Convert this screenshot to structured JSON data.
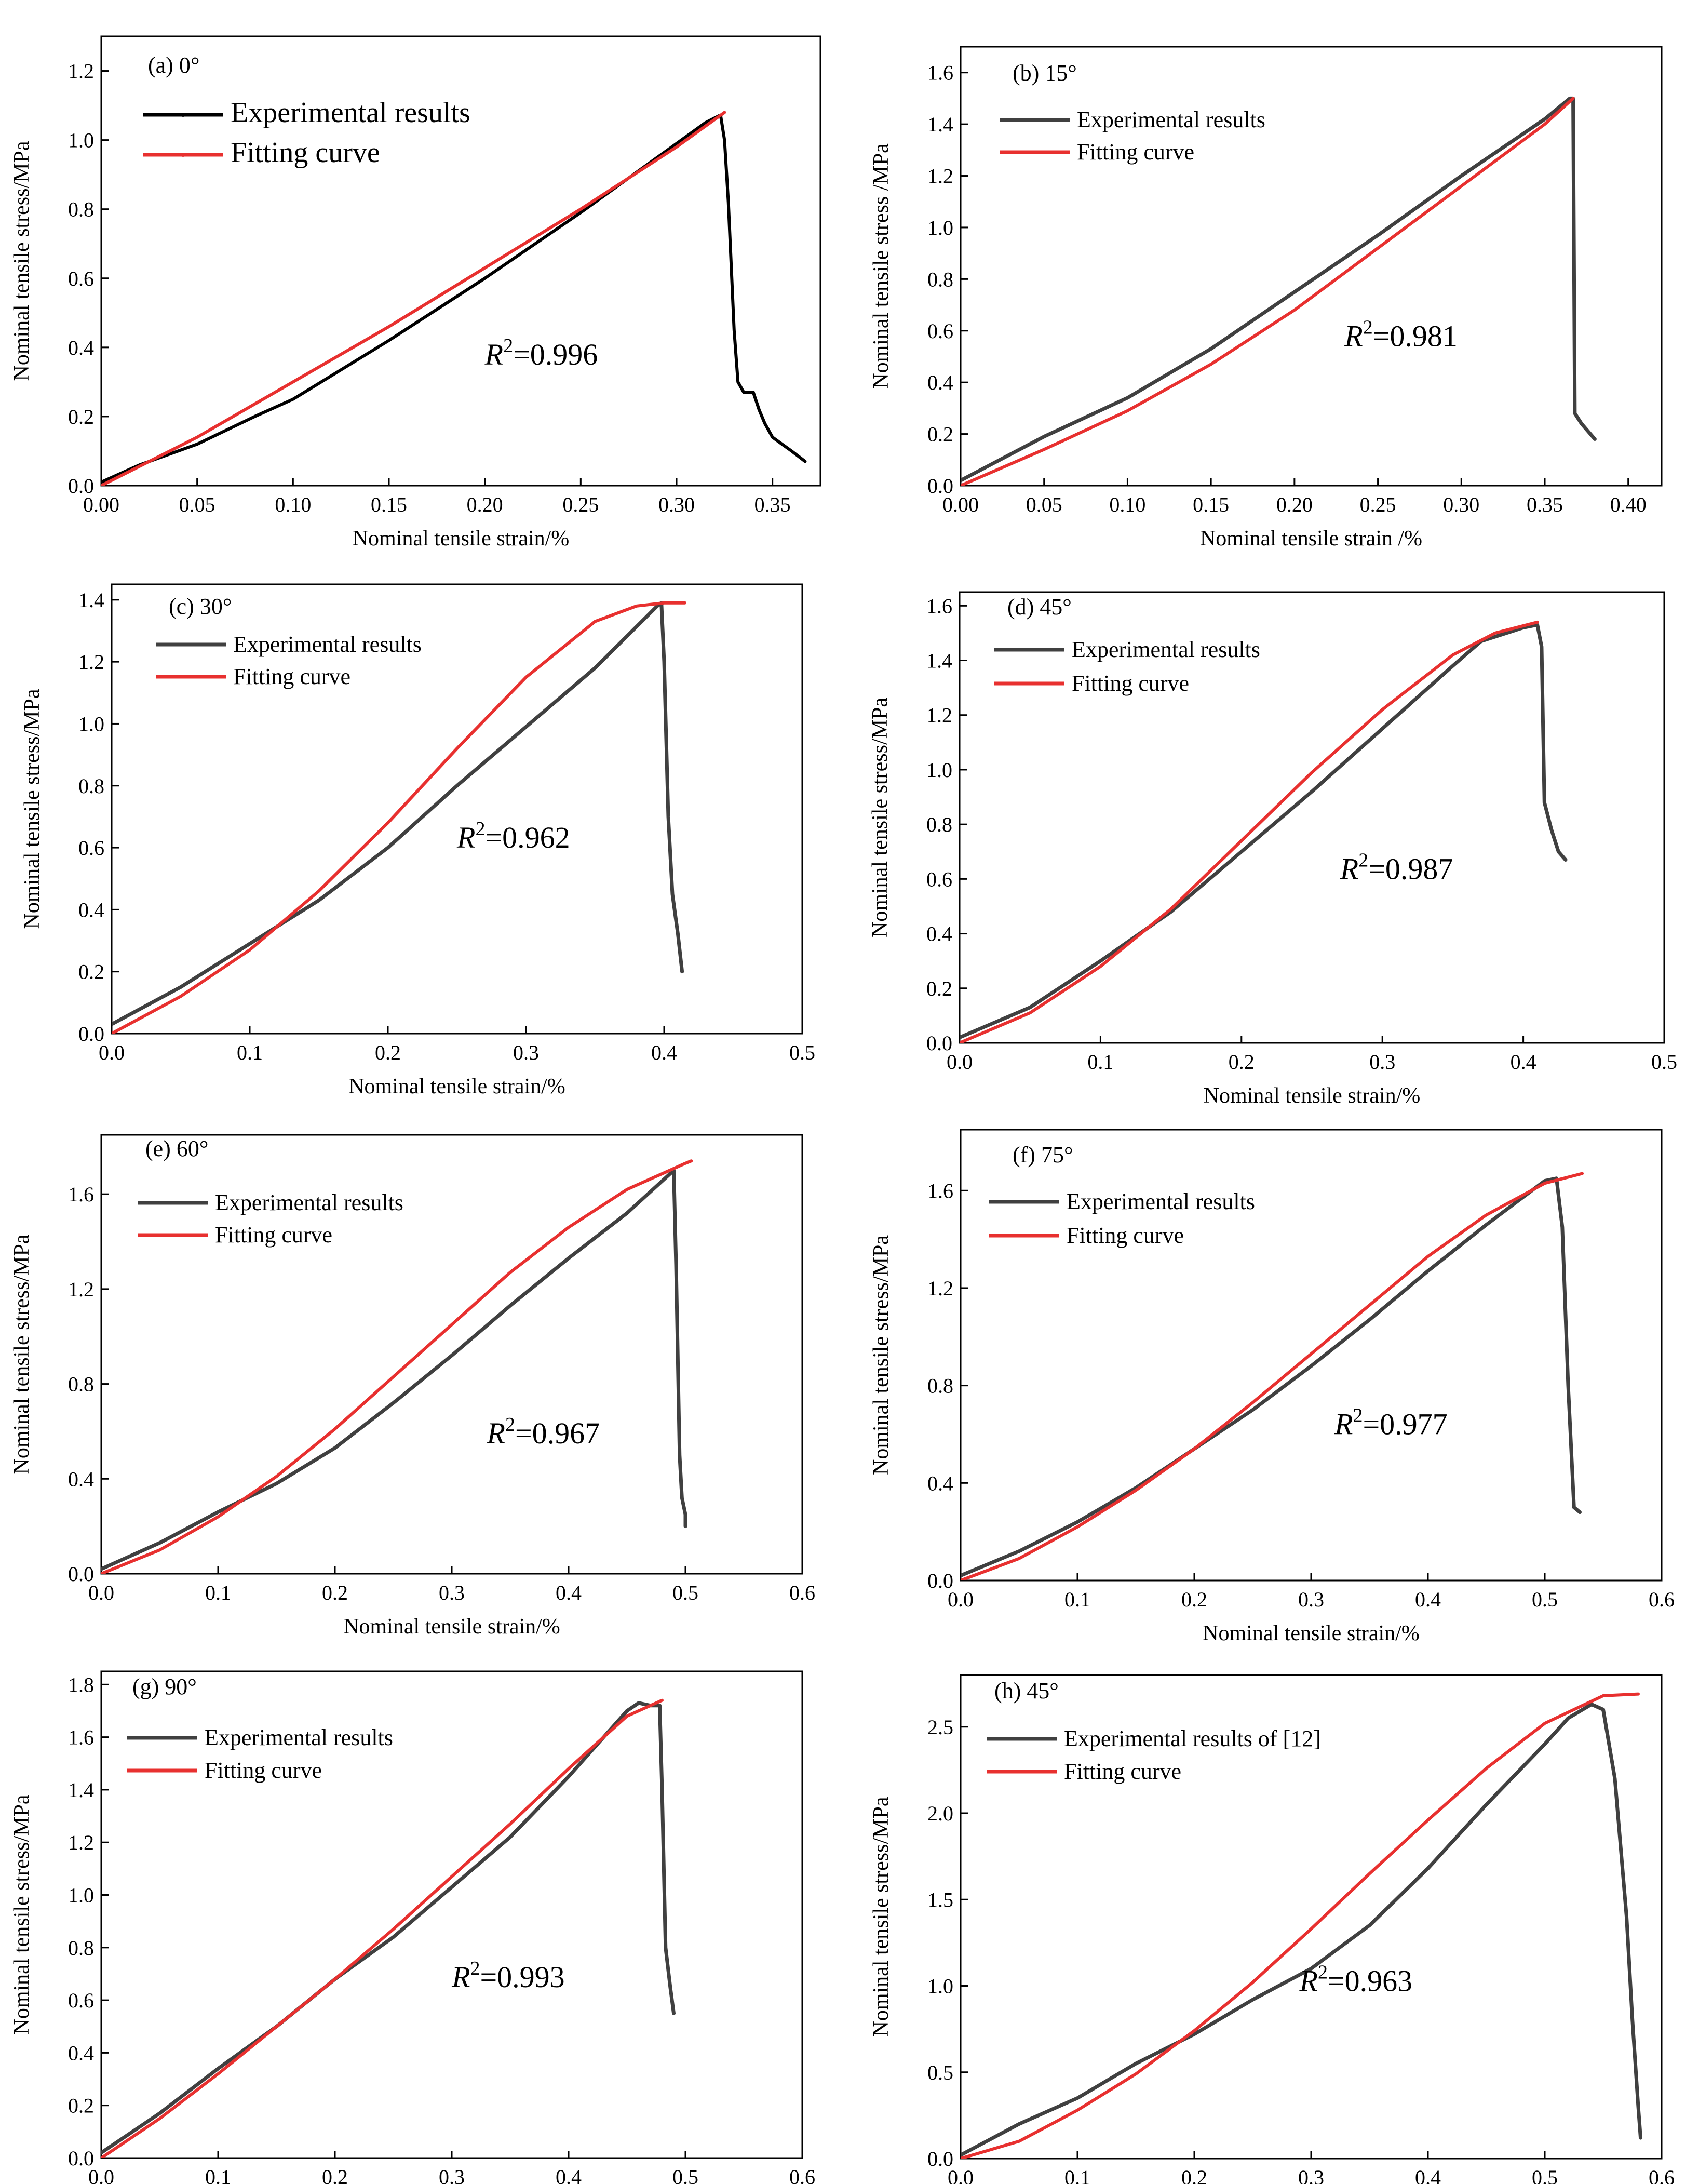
{
  "colors": {
    "experimental": "#404040",
    "experimental_a": "#000000",
    "fitting": "#e8302f",
    "axis": "#000000"
  },
  "chart_data": [
    {
      "type": "line",
      "title": "(a) 0°",
      "xlabel": "Nominal tensile strain/%",
      "ylabel": "Nominal tensile stress/MPa",
      "xlim": [
        0,
        0.375
      ],
      "ylim": [
        0,
        1.3
      ],
      "xticks": [
        0,
        0.05,
        0.1,
        0.15,
        0.2,
        0.25,
        0.3,
        0.35
      ],
      "xtick_labels": [
        "0.00",
        "0.05",
        "0.10",
        "0.15",
        "0.20",
        "0.25",
        "0.30",
        "0.35"
      ],
      "yticks": [
        0,
        0.2,
        0.4,
        0.6,
        0.8,
        1.0,
        1.2
      ],
      "ytick_labels": [
        "0.0",
        "0.2",
        "0.4",
        "0.6",
        "0.8",
        "1.0",
        "1.2"
      ],
      "legend": [
        "Experimental results",
        "Fitting curve"
      ],
      "annotation": {
        "prefix": "R",
        "sup": "2",
        "value": "=0.996",
        "at": [
          0.2,
          0.35
        ]
      },
      "series": [
        {
          "name": "Experimental results",
          "x": [
            0,
            0.02,
            0.05,
            0.08,
            0.1,
            0.15,
            0.2,
            0.25,
            0.3,
            0.315,
            0.322,
            0.323,
            0.325,
            0.327,
            0.33,
            0.332,
            0.335,
            0.34,
            0.343,
            0.346,
            0.35,
            0.355,
            0.36,
            0.367
          ],
          "y": [
            0.01,
            0.06,
            0.12,
            0.2,
            0.25,
            0.42,
            0.6,
            0.79,
            0.99,
            1.05,
            1.07,
            1.07,
            1.0,
            0.82,
            0.45,
            0.3,
            0.27,
            0.27,
            0.22,
            0.18,
            0.14,
            0.12,
            0.1,
            0.07
          ]
        },
        {
          "name": "Fitting curve",
          "x": [
            0,
            0.05,
            0.1,
            0.15,
            0.2,
            0.25,
            0.3,
            0.325
          ],
          "y": [
            0,
            0.14,
            0.3,
            0.46,
            0.63,
            0.8,
            0.98,
            1.08
          ]
        }
      ]
    },
    {
      "type": "line",
      "title": "(b) 15°",
      "xlabel": "Nominal tensile strain /%",
      "ylabel": "Nominal tensile stress /MPa",
      "xlim": [
        0,
        0.42
      ],
      "ylim": [
        0,
        1.7
      ],
      "xticks": [
        0,
        0.05,
        0.1,
        0.15,
        0.2,
        0.25,
        0.3,
        0.35,
        0.4
      ],
      "xtick_labels": [
        "0.00",
        "0.05",
        "0.10",
        "0.15",
        "0.20",
        "0.25",
        "0.30",
        "0.35",
        "0.40"
      ],
      "yticks": [
        0,
        0.2,
        0.4,
        0.6,
        0.8,
        1.0,
        1.2,
        1.4,
        1.6
      ],
      "ytick_labels": [
        "0.0",
        "0.2",
        "0.4",
        "0.6",
        "0.8",
        "1.0",
        "1.2",
        "1.4",
        "1.6"
      ],
      "legend": [
        "Experimental results",
        "Fitting curve"
      ],
      "annotation": {
        "prefix": "R",
        "sup": "2",
        "value": "=0.981",
        "at": [
          0.23,
          0.54
        ]
      },
      "series": [
        {
          "name": "Experimental results",
          "x": [
            0,
            0.05,
            0.1,
            0.15,
            0.2,
            0.25,
            0.3,
            0.35,
            0.365,
            0.367,
            0.368,
            0.372,
            0.38
          ],
          "y": [
            0.02,
            0.19,
            0.34,
            0.53,
            0.75,
            0.97,
            1.2,
            1.42,
            1.5,
            1.5,
            0.28,
            0.24,
            0.18
          ]
        },
        {
          "name": "Fitting curve",
          "x": [
            0,
            0.05,
            0.1,
            0.15,
            0.2,
            0.25,
            0.3,
            0.35,
            0.367
          ],
          "y": [
            0,
            0.14,
            0.29,
            0.47,
            0.68,
            0.92,
            1.16,
            1.4,
            1.5
          ]
        }
      ]
    },
    {
      "type": "line",
      "title": "(c) 30°",
      "xlabel": "Nominal tensile strain/%",
      "ylabel": "Nominal tensile stress/MPa",
      "xlim": [
        0,
        0.5
      ],
      "ylim": [
        0,
        1.45
      ],
      "xticks": [
        0,
        0.1,
        0.2,
        0.3,
        0.4,
        0.5
      ],
      "xtick_labels": [
        "0.0",
        "0.1",
        "0.2",
        "0.3",
        "0.4",
        "0.5"
      ],
      "yticks": [
        0,
        0.2,
        0.4,
        0.6,
        0.8,
        1.0,
        1.2,
        1.4
      ],
      "ytick_labels": [
        "0.0",
        "0.2",
        "0.4",
        "0.6",
        "0.8",
        "1.0",
        "1.2",
        "1.4"
      ],
      "legend": [
        "Experimental results",
        "Fitting curve"
      ],
      "annotation": {
        "prefix": "R",
        "sup": "2",
        "value": "=0.962",
        "at": [
          0.25,
          0.6
        ]
      },
      "series": [
        {
          "name": "Experimental results",
          "x": [
            0,
            0.05,
            0.1,
            0.15,
            0.2,
            0.25,
            0.3,
            0.35,
            0.395,
            0.398,
            0.4,
            0.403,
            0.406,
            0.41,
            0.413
          ],
          "y": [
            0.03,
            0.15,
            0.29,
            0.43,
            0.6,
            0.8,
            0.99,
            1.18,
            1.38,
            1.39,
            1.2,
            0.7,
            0.45,
            0.32,
            0.2
          ]
        },
        {
          "name": "Fitting curve",
          "x": [
            0,
            0.05,
            0.1,
            0.15,
            0.2,
            0.25,
            0.3,
            0.35,
            0.38,
            0.4,
            0.415
          ],
          "y": [
            0,
            0.12,
            0.27,
            0.46,
            0.68,
            0.92,
            1.15,
            1.33,
            1.38,
            1.39,
            1.39
          ]
        }
      ]
    },
    {
      "type": "line",
      "title": "(d) 45°",
      "xlabel": "Nominal tensile strain/%",
      "ylabel": "Nominal tensile stress/MPa",
      "xlim": [
        0,
        0.5
      ],
      "ylim": [
        0,
        1.65
      ],
      "xticks": [
        0,
        0.1,
        0.2,
        0.3,
        0.4,
        0.5
      ],
      "xtick_labels": [
        "0.0",
        "0.1",
        "0.2",
        "0.3",
        "0.4",
        "0.5"
      ],
      "yticks": [
        0,
        0.2,
        0.4,
        0.6,
        0.8,
        1.0,
        1.2,
        1.4,
        1.6
      ],
      "ytick_labels": [
        "0.0",
        "0.2",
        "0.4",
        "0.6",
        "0.8",
        "1.0",
        "1.2",
        "1.4",
        "1.6"
      ],
      "legend": [
        "Experimental results",
        "Fitting curve"
      ],
      "annotation": {
        "prefix": "R",
        "sup": "2",
        "value": "=0.987",
        "at": [
          0.27,
          0.6
        ]
      },
      "series": [
        {
          "name": "Experimental results",
          "x": [
            0,
            0.05,
            0.1,
            0.15,
            0.2,
            0.25,
            0.3,
            0.35,
            0.37,
            0.4,
            0.41,
            0.413,
            0.415,
            0.42,
            0.425,
            0.43
          ],
          "y": [
            0.02,
            0.13,
            0.3,
            0.48,
            0.7,
            0.92,
            1.15,
            1.38,
            1.47,
            1.52,
            1.53,
            1.45,
            0.88,
            0.78,
            0.7,
            0.67
          ]
        },
        {
          "name": "Fitting curve",
          "x": [
            0,
            0.05,
            0.1,
            0.15,
            0.2,
            0.25,
            0.3,
            0.35,
            0.38,
            0.41
          ],
          "y": [
            0,
            0.11,
            0.28,
            0.49,
            0.74,
            0.99,
            1.22,
            1.42,
            1.5,
            1.54
          ]
        }
      ]
    },
    {
      "type": "line",
      "title": "(e) 60°",
      "xlabel": "Nominal tensile strain/%",
      "ylabel": "Nominal tensile stress/MPa",
      "xlim": [
        0,
        0.6
      ],
      "ylim": [
        0,
        1.85
      ],
      "xticks": [
        0,
        0.1,
        0.2,
        0.3,
        0.4,
        0.5,
        0.6
      ],
      "xtick_labels": [
        "0.0",
        "0.1",
        "0.2",
        "0.3",
        "0.4",
        "0.5",
        "0.6"
      ],
      "yticks": [
        0,
        0.4,
        0.8,
        1.2,
        1.6
      ],
      "ytick_labels": [
        "0.0",
        "0.4",
        "0.8",
        "1.2",
        "1.6"
      ],
      "legend": [
        "Experimental results",
        "Fitting curve"
      ],
      "annotation": {
        "prefix": "R",
        "sup": "2",
        "value": "=0.967",
        "at": [
          0.33,
          0.55
        ]
      },
      "series": [
        {
          "name": "Experimental results",
          "x": [
            0,
            0.05,
            0.1,
            0.15,
            0.2,
            0.25,
            0.3,
            0.35,
            0.4,
            0.45,
            0.49,
            0.492,
            0.495,
            0.497,
            0.5,
            0.5
          ],
          "y": [
            0.02,
            0.13,
            0.26,
            0.38,
            0.53,
            0.72,
            0.92,
            1.13,
            1.33,
            1.52,
            1.7,
            1.3,
            0.5,
            0.32,
            0.25,
            0.2
          ]
        },
        {
          "name": "Fitting curve",
          "x": [
            0,
            0.05,
            0.1,
            0.15,
            0.2,
            0.25,
            0.3,
            0.35,
            0.4,
            0.45,
            0.5,
            0.505
          ],
          "y": [
            0,
            0.1,
            0.24,
            0.41,
            0.61,
            0.83,
            1.05,
            1.27,
            1.46,
            1.62,
            1.73,
            1.74
          ]
        }
      ]
    },
    {
      "type": "line",
      "title": "(f) 75°",
      "xlabel": "Nominal tensile strain/%",
      "ylabel": "Nominal tensile stress/MPa",
      "xlim": [
        0,
        0.6
      ],
      "ylim": [
        0,
        1.85
      ],
      "xticks": [
        0,
        0.1,
        0.2,
        0.3,
        0.4,
        0.5,
        0.6
      ],
      "xtick_labels": [
        "0.0",
        "0.1",
        "0.2",
        "0.3",
        "0.4",
        "0.5",
        "0.6"
      ],
      "yticks": [
        0,
        0.4,
        0.8,
        1.2,
        1.6
      ],
      "ytick_labels": [
        "0.0",
        "0.4",
        "0.8",
        "1.2",
        "1.6"
      ],
      "legend": [
        "Experimental results",
        "Fitting curve"
      ],
      "annotation": {
        "prefix": "R",
        "sup": "2",
        "value": "=0.977",
        "at": [
          0.32,
          0.6
        ]
      },
      "series": [
        {
          "name": "Experimental results",
          "x": [
            0,
            0.05,
            0.1,
            0.15,
            0.2,
            0.25,
            0.3,
            0.35,
            0.4,
            0.45,
            0.5,
            0.51,
            0.515,
            0.52,
            0.525,
            0.53
          ],
          "y": [
            0.02,
            0.12,
            0.24,
            0.38,
            0.54,
            0.7,
            0.88,
            1.07,
            1.27,
            1.46,
            1.64,
            1.65,
            1.45,
            0.8,
            0.3,
            0.28
          ]
        },
        {
          "name": "Fitting curve",
          "x": [
            0,
            0.05,
            0.1,
            0.15,
            0.2,
            0.25,
            0.3,
            0.35,
            0.4,
            0.45,
            0.5,
            0.532
          ],
          "y": [
            0,
            0.09,
            0.22,
            0.37,
            0.54,
            0.73,
            0.93,
            1.13,
            1.33,
            1.5,
            1.63,
            1.67
          ]
        }
      ]
    },
    {
      "type": "line",
      "title": "(g) 90°",
      "xlabel": "Nominal tensile strain/%",
      "ylabel": "Nominal tensile stress/MPa",
      "xlim": [
        0,
        0.6
      ],
      "ylim": [
        0,
        1.85
      ],
      "xticks": [
        0,
        0.1,
        0.2,
        0.3,
        0.4,
        0.5,
        0.6
      ],
      "xtick_labels": [
        "0.0",
        "0.1",
        "0.2",
        "0.3",
        "0.4",
        "0.5",
        "0.6"
      ],
      "yticks": [
        0,
        0.2,
        0.4,
        0.6,
        0.8,
        1.0,
        1.2,
        1.4,
        1.6,
        1.8
      ],
      "ytick_labels": [
        "0.0",
        "0.2",
        "0.4",
        "0.6",
        "0.8",
        "1.0",
        "1.2",
        "1.4",
        "1.6",
        "1.8"
      ],
      "legend": [
        "Experimental results",
        "Fitting curve"
      ],
      "annotation": {
        "prefix": "R",
        "sup": "2",
        "value": "=0.993",
        "at": [
          0.3,
          0.65
        ]
      },
      "series": [
        {
          "name": "Experimental results",
          "x": [
            0,
            0.05,
            0.1,
            0.15,
            0.2,
            0.25,
            0.3,
            0.35,
            0.4,
            0.45,
            0.46,
            0.47,
            0.478,
            0.48,
            0.483,
            0.487,
            0.49
          ],
          "y": [
            0.02,
            0.17,
            0.34,
            0.5,
            0.68,
            0.84,
            1.03,
            1.22,
            1.45,
            1.7,
            1.73,
            1.72,
            1.72,
            1.4,
            0.8,
            0.65,
            0.55
          ]
        },
        {
          "name": "Fitting curve",
          "x": [
            0,
            0.05,
            0.1,
            0.15,
            0.2,
            0.25,
            0.3,
            0.35,
            0.4,
            0.45,
            0.48
          ],
          "y": [
            0,
            0.15,
            0.32,
            0.5,
            0.68,
            0.87,
            1.07,
            1.27,
            1.48,
            1.68,
            1.74
          ]
        }
      ]
    },
    {
      "type": "line",
      "title": "(h) 45°",
      "xlabel": "Nominal tensile strain/%",
      "ylabel": "Nominal tensile stress/MPa",
      "xlim": [
        0,
        0.6
      ],
      "ylim": [
        0,
        2.8
      ],
      "xticks": [
        0,
        0.1,
        0.2,
        0.3,
        0.4,
        0.5,
        0.6
      ],
      "xtick_labels": [
        "0.0",
        "0.1",
        "0.2",
        "0.3",
        "0.4",
        "0.5",
        "0.6"
      ],
      "yticks": [
        0,
        0.5,
        1.0,
        1.5,
        2.0,
        2.5
      ],
      "ytick_labels": [
        "0.0",
        "0.5",
        "1.0",
        "1.5",
        "2.0",
        "2.5"
      ],
      "legend": [
        "Experimental results of [12]",
        "Fitting curve"
      ],
      "annotation": {
        "prefix": "R",
        "sup": "2",
        "value": "=0.963",
        "at": [
          0.29,
          0.97
        ]
      },
      "series": [
        {
          "name": "Experimental results of [12]",
          "x": [
            0,
            0.05,
            0.1,
            0.15,
            0.2,
            0.25,
            0.3,
            0.35,
            0.4,
            0.45,
            0.5,
            0.52,
            0.54,
            0.55,
            0.56,
            0.57,
            0.575,
            0.58,
            0.582
          ],
          "y": [
            0.02,
            0.2,
            0.35,
            0.55,
            0.72,
            0.92,
            1.1,
            1.35,
            1.68,
            2.05,
            2.4,
            2.55,
            2.63,
            2.6,
            2.2,
            1.4,
            0.8,
            0.3,
            0.12
          ]
        },
        {
          "name": "Fitting curve",
          "x": [
            0,
            0.05,
            0.1,
            0.15,
            0.2,
            0.25,
            0.3,
            0.35,
            0.4,
            0.45,
            0.5,
            0.55,
            0.58
          ],
          "y": [
            0,
            0.1,
            0.28,
            0.49,
            0.74,
            1.02,
            1.33,
            1.65,
            1.96,
            2.26,
            2.52,
            2.68,
            2.69
          ]
        }
      ]
    }
  ]
}
